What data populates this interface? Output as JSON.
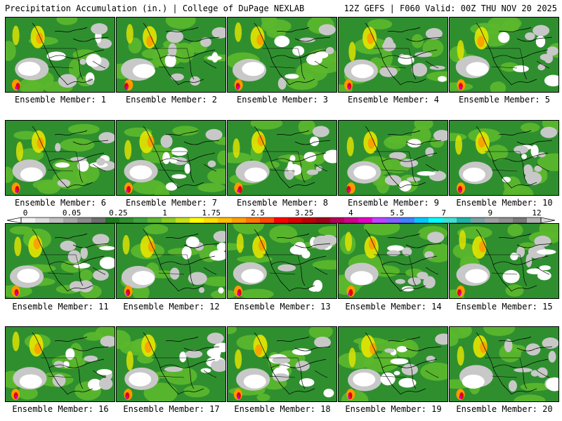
{
  "header": {
    "left": "Precipitation Accumulation (in.) | College of DuPage NEXLAB",
    "right": "12Z GEFS | F060 Valid: 00Z THU NOV 20 2025"
  },
  "panels": [
    {
      "label": "Ensemble Member: 1"
    },
    {
      "label": "Ensemble Member: 2"
    },
    {
      "label": "Ensemble Member: 3"
    },
    {
      "label": "Ensemble Member: 4"
    },
    {
      "label": "Ensemble Member: 5"
    },
    {
      "label": "Ensemble Member: 6"
    },
    {
      "label": "Ensemble Member: 7"
    },
    {
      "label": "Ensemble Member: 8"
    },
    {
      "label": "Ensemble Member: 9"
    },
    {
      "label": "Ensemble Member: 10"
    },
    {
      "label": "Ensemble Member: 11"
    },
    {
      "label": "Ensemble Member: 12"
    },
    {
      "label": "Ensemble Member: 13"
    },
    {
      "label": "Ensemble Member: 14"
    },
    {
      "label": "Ensemble Member: 15"
    },
    {
      "label": "Ensemble Member: 16"
    },
    {
      "label": "Ensemble Member: 17"
    },
    {
      "label": "Ensemble Member: 18"
    },
    {
      "label": "Ensemble Member: 19"
    },
    {
      "label": "Ensemble Member: 20"
    }
  ],
  "colorbar": {
    "ticks": [
      "0",
      "0.05",
      "0.25",
      "1",
      "1.75",
      "2.5",
      "3.25",
      "4",
      "5.5",
      "7",
      "9",
      "12"
    ],
    "colors": [
      "#f2f2f2",
      "#dcdcdc",
      "#c0c0c0",
      "#a6a6a6",
      "#8c8c8c",
      "#6e6e6e",
      "#1f7a1f",
      "#2f8f2f",
      "#3ea33e",
      "#5cb82e",
      "#8ccd1f",
      "#c4e01a",
      "#ffff00",
      "#ffe000",
      "#ffc000",
      "#ffa000",
      "#ff7800",
      "#ff4b00",
      "#ff0000",
      "#e00000",
      "#c00000",
      "#a00018",
      "#b4005a",
      "#d0008c",
      "#e600c8",
      "#c040ff",
      "#8060ff",
      "#4080ff",
      "#00c8ff",
      "#00ffff",
      "#40e0d0",
      "#20b2aa",
      "#78a0a0",
      "#a0a0a0",
      "#909090",
      "#787878",
      "#b0b0b0"
    ]
  },
  "colors": {
    "ocean_white": "#ffffff",
    "light_gray": "#c8c8c8",
    "land_green": "#2f8f2f",
    "light_green": "#5cb82e",
    "yellow": "#e6e600",
    "orange": "#ff9900",
    "red": "#e00000",
    "magenta": "#cc00cc",
    "coastline": "#000000"
  }
}
